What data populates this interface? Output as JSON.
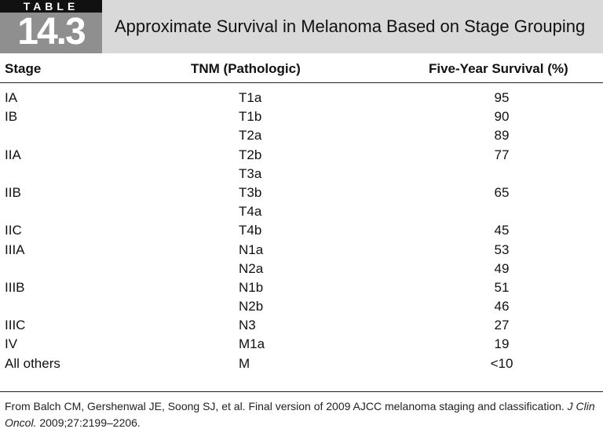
{
  "header": {
    "badge_word": "TABLE",
    "badge_number": "14.3",
    "title": "Approximate Survival in Melanoma Based on Stage Grouping"
  },
  "columns": {
    "stage": "Stage",
    "tnm": "TNM (Pathologic)",
    "survival": "Five-Year Survival (%)"
  },
  "rows": [
    {
      "stage": "IA",
      "tnm": "T1a",
      "survival": "95"
    },
    {
      "stage": "IB",
      "tnm": "T1b",
      "survival": "90"
    },
    {
      "stage": "",
      "tnm": "T2a",
      "survival": "89"
    },
    {
      "stage": "IIA",
      "tnm": "T2b",
      "survival": "77"
    },
    {
      "stage": "",
      "tnm": "T3a",
      "survival": ""
    },
    {
      "stage": "IIB",
      "tnm": "T3b",
      "survival": "65"
    },
    {
      "stage": "",
      "tnm": "T4a",
      "survival": ""
    },
    {
      "stage": "IIC",
      "tnm": "T4b",
      "survival": "45"
    },
    {
      "stage": "IIIA",
      "tnm": "N1a",
      "survival": "53"
    },
    {
      "stage": "",
      "tnm": "N2a",
      "survival": "49"
    },
    {
      "stage": "IIIB",
      "tnm": "N1b",
      "survival": "51"
    },
    {
      "stage": "",
      "tnm": "N2b",
      "survival": "46"
    },
    {
      "stage": "IIIC",
      "tnm": "N3",
      "survival": "27"
    },
    {
      "stage": "IV",
      "tnm": "M1a",
      "survival": "19"
    },
    {
      "stage": "All others",
      "tnm": "M",
      "survival": "<10"
    }
  ],
  "footnote": {
    "part1": "From Balch CM, Gershenwal JE, Soong SJ, et al. Final version of 2009 AJCC melanoma staging and classification. ",
    "journal": "J Clin Oncol.",
    "part2": " 2009;27:2199–2206."
  }
}
